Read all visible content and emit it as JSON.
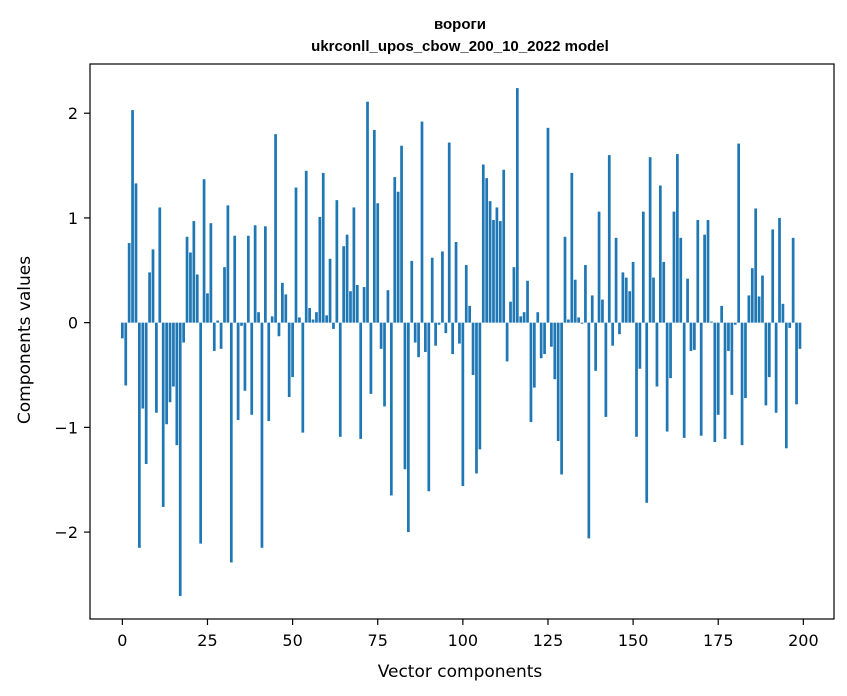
{
  "chart_data": {
    "type": "bar",
    "title": "вороги",
    "subtitle": "ukrconll_upos_cbow_200_10_2022 model",
    "xlabel": "Vector components",
    "ylabel": "Components values",
    "xlim": [
      -9.5,
      209
    ],
    "ylim": [
      -2.83,
      2.47
    ],
    "xticks": [
      0,
      25,
      50,
      75,
      100,
      125,
      150,
      175,
      200
    ],
    "yticks": [
      -2,
      -1,
      0,
      1,
      2
    ],
    "grid": false,
    "bar_color": "#1f77b4",
    "x": [
      0,
      1,
      2,
      3,
      4,
      5,
      6,
      7,
      8,
      9,
      10,
      11,
      12,
      13,
      14,
      15,
      16,
      17,
      18,
      19,
      20,
      21,
      22,
      23,
      24,
      25,
      26,
      27,
      28,
      29,
      30,
      31,
      32,
      33,
      34,
      35,
      36,
      37,
      38,
      39,
      40,
      41,
      42,
      43,
      44,
      45,
      46,
      47,
      48,
      49,
      50,
      51,
      52,
      53,
      54,
      55,
      56,
      57,
      58,
      59,
      60,
      61,
      62,
      63,
      64,
      65,
      66,
      67,
      68,
      69,
      70,
      71,
      72,
      73,
      74,
      75,
      76,
      77,
      78,
      79,
      80,
      81,
      82,
      83,
      84,
      85,
      86,
      87,
      88,
      89,
      90,
      91,
      92,
      93,
      94,
      95,
      96,
      97,
      98,
      99,
      100,
      101,
      102,
      103,
      104,
      105,
      106,
      107,
      108,
      109,
      110,
      111,
      112,
      113,
      114,
      115,
      116,
      117,
      118,
      119,
      120,
      121,
      122,
      123,
      124,
      125,
      126,
      127,
      128,
      129,
      130,
      131,
      132,
      133,
      134,
      135,
      136,
      137,
      138,
      139,
      140,
      141,
      142,
      143,
      144,
      145,
      146,
      147,
      148,
      149,
      150,
      151,
      152,
      153,
      154,
      155,
      156,
      157,
      158,
      159,
      160,
      161,
      162,
      163,
      164,
      165,
      166,
      167,
      168,
      169,
      170,
      171,
      172,
      173,
      174,
      175,
      176,
      177,
      178,
      179,
      180,
      181,
      182,
      183,
      184,
      185,
      186,
      187,
      188,
      189,
      190,
      191,
      192,
      193,
      194,
      195,
      196,
      197,
      198,
      199
    ],
    "values": [
      -0.15,
      -0.6,
      0.76,
      2.03,
      1.33,
      -2.15,
      -0.82,
      -1.35,
      0.48,
      0.7,
      -0.86,
      1.1,
      -1.76,
      -0.97,
      -0.76,
      -0.61,
      -1.17,
      -2.61,
      -0.19,
      0.82,
      0.67,
      0.97,
      0.46,
      -2.11,
      1.37,
      0.28,
      0.95,
      -0.27,
      0.02,
      -0.25,
      0.53,
      1.12,
      -2.29,
      0.83,
      -0.93,
      -0.03,
      -0.65,
      0.83,
      -0.88,
      0.93,
      0.1,
      -2.15,
      0.92,
      -0.94,
      0.06,
      1.8,
      -0.13,
      0.38,
      0.27,
      -0.71,
      -0.52,
      1.29,
      0.05,
      -1.05,
      1.45,
      0.14,
      0.03,
      0.1,
      1.01,
      1.43,
      0.07,
      0.61,
      -0.06,
      1.17,
      -1.09,
      0.73,
      0.84,
      0.3,
      1.1,
      0.36,
      -1.11,
      0.34,
      2.11,
      -0.68,
      1.84,
      1.14,
      -0.25,
      -0.8,
      0.31,
      -1.65,
      1.39,
      1.25,
      1.69,
      -1.4,
      -2.0,
      0.59,
      -0.19,
      -0.33,
      1.92,
      -0.28,
      -1.61,
      0.62,
      -0.22,
      -0.02,
      0.68,
      -0.1,
      1.72,
      -0.3,
      0.77,
      -0.2,
      -1.56,
      0.55,
      0.16,
      -0.5,
      -1.44,
      -1.21,
      1.51,
      1.38,
      1.16,
      0.98,
      1.1,
      0.97,
      1.46,
      -0.37,
      0.2,
      0.53,
      2.24,
      0.06,
      0.1,
      0.4,
      -0.95,
      -0.62,
      0.1,
      -0.34,
      -0.3,
      1.86,
      -0.23,
      -0.54,
      -1.13,
      -1.45,
      0.82,
      0.03,
      1.43,
      0.41,
      0.05,
      -0.01,
      0.55,
      -2.06,
      0.26,
      -0.46,
      1.06,
      0.22,
      -0.9,
      1.6,
      -0.22,
      0.81,
      -0.11,
      0.48,
      0.43,
      0.3,
      0.58,
      -1.09,
      -0.44,
      1.06,
      -1.72,
      1.58,
      0.43,
      -0.61,
      1.31,
      0.58,
      -1.04,
      -0.53,
      1.06,
      1.61,
      0.81,
      -1.1,
      0.42,
      -0.27,
      -0.26,
      0.98,
      -1.08,
      0.84,
      0.98,
      0.01,
      -1.14,
      -0.88,
      0.16,
      -1.11,
      -0.27,
      -0.69,
      -0.02,
      1.71,
      -1.17,
      -0.72,
      0.26,
      0.52,
      1.09,
      0.25,
      0.45,
      -0.79,
      -0.52,
      0.89,
      -0.86,
      1.0,
      0.18,
      -1.2,
      -0.05,
      0.81,
      -0.78,
      -0.25
    ]
  }
}
